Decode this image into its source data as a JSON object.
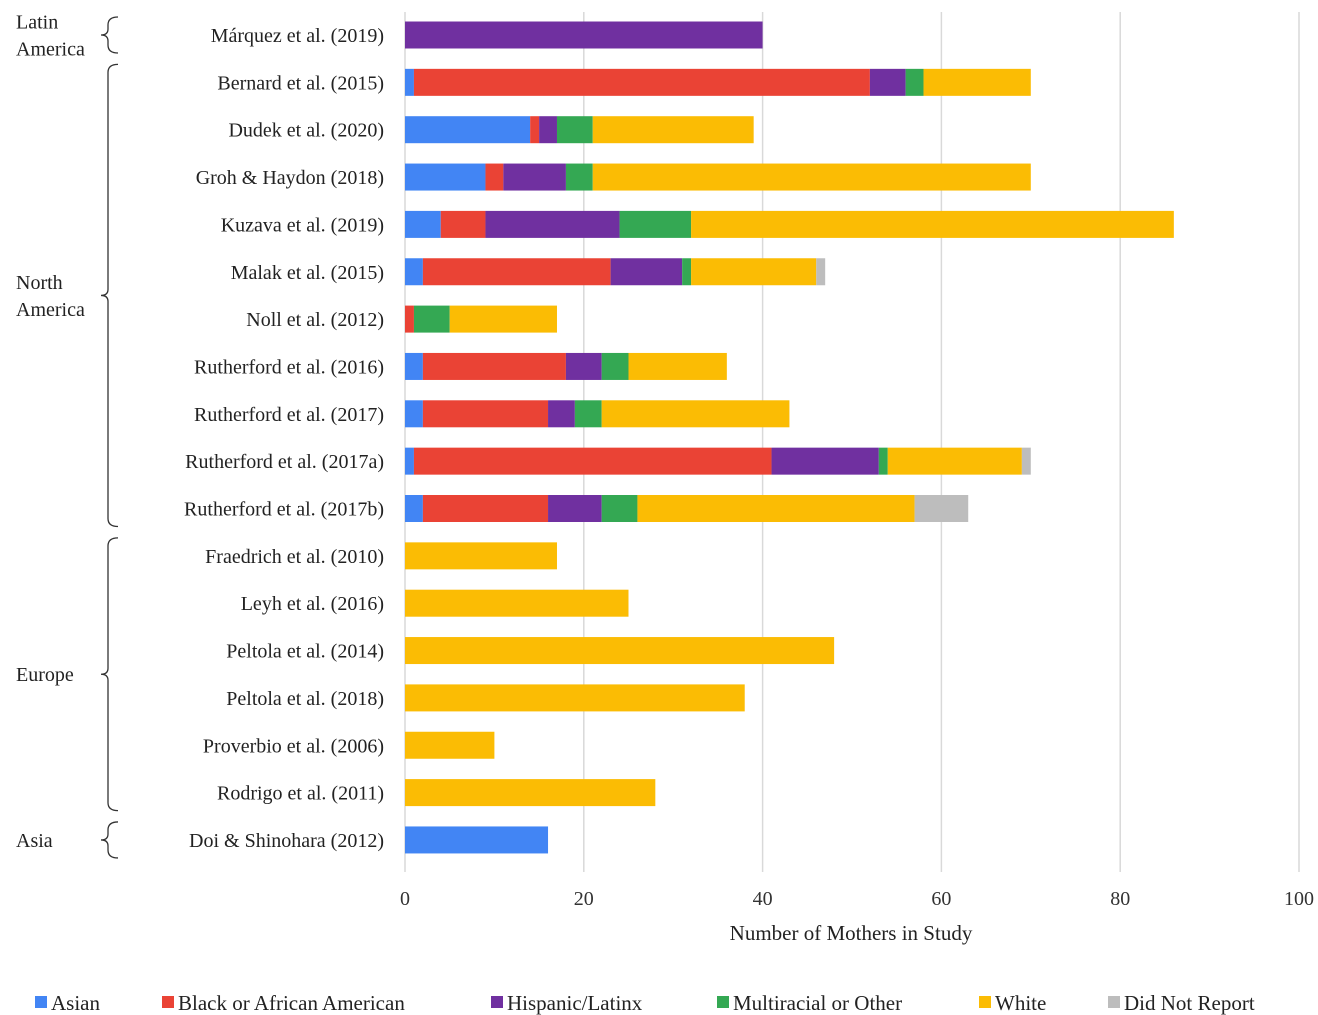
{
  "chart_data": {
    "type": "bar",
    "orientation": "horizontal",
    "stacked": true,
    "xlabel": "Number of Mothers in Study",
    "xlim": [
      0,
      100
    ],
    "xticks": [
      0,
      20,
      40,
      60,
      80,
      100
    ],
    "grid": true,
    "legend_position": "bottom",
    "categories": [
      "Márquez et al. (2019)",
      "Bernard et al. (2015)",
      "Dudek et al. (2020)",
      "Groh & Haydon (2018)",
      "Kuzava et al. (2019)",
      "Malak et al. (2015)",
      "Noll et al. (2012)",
      "Rutherford et al. (2016)",
      "Rutherford et al. (2017)",
      "Rutherford et al. (2017a)",
      "Rutherford et al. (2017b)",
      "Fraedrich et al. (2010)",
      "Leyh et al. (2016)",
      "Peltola et al. (2014)",
      "Peltola et al. (2018)",
      "Proverbio et al. (2006)",
      "Rodrigo et al. (2011)",
      "Doi & Shinohara (2012)"
    ],
    "series": [
      {
        "name": "Asian",
        "color": "#4285F4",
        "values": [
          0,
          1,
          14,
          9,
          4,
          2,
          0,
          2,
          2,
          1,
          2,
          0,
          0,
          0,
          0,
          0,
          0,
          16
        ]
      },
      {
        "name": "Black or African American",
        "color": "#EA4335",
        "values": [
          0,
          51,
          1,
          2,
          5,
          21,
          1,
          16,
          14,
          40,
          14,
          0,
          0,
          0,
          0,
          0,
          0,
          0
        ]
      },
      {
        "name": "Hispanic/Latinx",
        "color": "#7030A0",
        "values": [
          40,
          4,
          2,
          7,
          15,
          8,
          0,
          4,
          3,
          12,
          6,
          0,
          0,
          0,
          0,
          0,
          0,
          0
        ]
      },
      {
        "name": "Multiracial or Other",
        "color": "#34A853",
        "values": [
          0,
          2,
          4,
          3,
          8,
          1,
          4,
          3,
          3,
          1,
          4,
          0,
          0,
          0,
          0,
          0,
          0,
          0
        ]
      },
      {
        "name": "White",
        "color": "#FBBC04",
        "values": [
          0,
          12,
          18,
          49,
          54,
          14,
          12,
          11,
          21,
          15,
          31,
          17,
          25,
          48,
          38,
          10,
          28,
          0
        ]
      },
      {
        "name": "Did Not Report",
        "color": "#BDBDBD",
        "values": [
          0,
          0,
          0,
          0,
          0,
          1,
          0,
          0,
          0,
          1,
          6,
          0,
          0,
          0,
          0,
          0,
          0,
          0
        ]
      }
    ],
    "regions": [
      {
        "label_lines": [
          "Latin",
          "America"
        ],
        "first": 0,
        "last": 0
      },
      {
        "label_lines": [
          "North",
          "America"
        ],
        "first": 1,
        "last": 10
      },
      {
        "label_lines": [
          "Europe"
        ],
        "first": 11,
        "last": 16
      },
      {
        "label_lines": [
          "Asia"
        ],
        "first": 17,
        "last": 17
      }
    ]
  }
}
